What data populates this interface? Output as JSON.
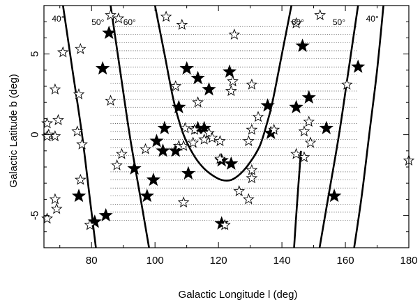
{
  "chart_data": {
    "type": "scatter",
    "title": "",
    "xlabel": "Galactic Longitude l (deg)",
    "ylabel": "Galactic Latitude b (deg)",
    "xlim": [
      65,
      180
    ],
    "ylim": [
      -7,
      8
    ],
    "xticks": [
      80,
      100,
      120,
      140,
      160,
      180
    ],
    "yticks": [
      -5,
      0,
      5
    ],
    "grid": false,
    "curve_labels": [
      {
        "text": "40°",
        "x": 69.5,
        "y": 7.0
      },
      {
        "text": "50°",
        "x": 82.0,
        "y": 6.8
      },
      {
        "text": "60°",
        "x": 92.0,
        "y": 6.8
      },
      {
        "text": "60°",
        "x": 145.0,
        "y": 6.8
      },
      {
        "text": "50°",
        "x": 158.0,
        "y": 6.8
      },
      {
        "text": "40°",
        "x": 168.5,
        "y": 7.0
      }
    ],
    "curves": [
      {
        "name": "40° left",
        "points": [
          [
            71,
            8
          ],
          [
            74,
            4
          ],
          [
            77,
            0
          ],
          [
            79.5,
            -4
          ],
          [
            82,
            -8
          ]
        ]
      },
      {
        "name": "50° left",
        "points": [
          [
            86,
            8
          ],
          [
            89,
            4
          ],
          [
            92,
            0
          ],
          [
            95.5,
            -4
          ],
          [
            99,
            -8
          ]
        ]
      },
      {
        "name": "60° left",
        "points": [
          [
            100,
            8
          ],
          [
            101,
            7
          ],
          [
            103,
            5
          ],
          [
            106,
            2
          ],
          [
            109,
            0
          ],
          [
            112,
            -1.2
          ],
          [
            115,
            -2.0
          ],
          [
            118,
            -2.5
          ],
          [
            121,
            -2.8
          ],
          [
            124,
            -2.8
          ],
          [
            127,
            -2.4
          ],
          [
            130,
            -1.7
          ],
          [
            133,
            -0.7
          ],
          [
            135,
            0.5
          ],
          [
            137,
            2
          ],
          [
            140,
            5
          ],
          [
            142,
            7
          ],
          [
            143,
            8
          ]
        ]
      },
      {
        "name": "50° right",
        "points": [
          [
            164,
            8
          ],
          [
            161,
            4
          ],
          [
            158,
            0
          ],
          [
            154.5,
            -4
          ],
          [
            151,
            -8
          ]
        ]
      },
      {
        "name": "40° right",
        "points": [
          [
            172,
            8
          ],
          [
            170,
            4
          ],
          [
            167.5,
            0
          ],
          [
            165,
            -4
          ],
          [
            162,
            -8
          ]
        ]
      },
      {
        "name": "left edge of 60° region (bottom)",
        "points": [
          [
            143.5,
            -8
          ],
          [
            144.5,
            -5
          ],
          [
            146,
            -1
          ]
        ]
      }
    ],
    "survey_rows": {
      "b_values": [
        6.7,
        6.2,
        5.7,
        5.2,
        4.7,
        4.2,
        3.7,
        3.2,
        2.7,
        2.2,
        1.7,
        1.2,
        0.7,
        0.2,
        -0.3,
        -0.8,
        -1.3,
        -1.8,
        -2.3,
        -2.8,
        -3.3,
        -3.8,
        -4.3,
        -4.8,
        -5.3
      ],
      "l_start": 86,
      "l_end": 164
    },
    "series": [
      {
        "name": "filled stars",
        "points": [
          [
            85.5,
            6.3
          ],
          [
            83.5,
            4.1
          ],
          [
            146.5,
            5.5
          ],
          [
            164,
            4.2
          ],
          [
            123.5,
            3.9
          ],
          [
            110,
            4.1
          ],
          [
            113.5,
            3.5
          ],
          [
            117,
            2.8
          ],
          [
            148.5,
            2.3
          ],
          [
            135.5,
            1.8
          ],
          [
            144.5,
            1.7
          ],
          [
            107.5,
            1.7
          ],
          [
            103,
            0.4
          ],
          [
            113.5,
            0.4
          ],
          [
            115.5,
            0.4
          ],
          [
            154,
            0.4
          ],
          [
            136.5,
            0.1
          ],
          [
            100.5,
            -0.4
          ],
          [
            102.5,
            -1.0
          ],
          [
            106.5,
            -1.0
          ],
          [
            121,
            -1.6
          ],
          [
            124,
            -1.8
          ],
          [
            93.5,
            -2.1
          ],
          [
            110.5,
            -2.4
          ],
          [
            99.5,
            -2.8
          ],
          [
            76,
            -3.8
          ],
          [
            97.5,
            -3.8
          ],
          [
            156.5,
            -3.8
          ],
          [
            84.5,
            -5.0
          ],
          [
            81,
            -5.4
          ],
          [
            121,
            -5.5
          ]
        ]
      },
      {
        "name": "open stars",
        "points": [
          [
            86,
            7.4
          ],
          [
            88.5,
            7.2
          ],
          [
            103.5,
            7.3
          ],
          [
            144.5,
            6.9
          ],
          [
            152,
            7.4
          ],
          [
            108.5,
            6.8
          ],
          [
            125,
            6.2
          ],
          [
            76.5,
            5.3
          ],
          [
            71,
            5.1
          ],
          [
            124.5,
            3.3
          ],
          [
            130.5,
            3.1
          ],
          [
            106.5,
            3.0
          ],
          [
            68.5,
            2.8
          ],
          [
            160.5,
            3.1
          ],
          [
            76,
            2.5
          ],
          [
            124,
            2.7
          ],
          [
            86,
            2.1
          ],
          [
            113.5,
            2.0
          ],
          [
            132.5,
            1.1
          ],
          [
            66,
            0.7
          ],
          [
            69.5,
            0.9
          ],
          [
            148.5,
            0.8
          ],
          [
            130.5,
            0.3
          ],
          [
            137.5,
            0.3
          ],
          [
            109.5,
            0.4
          ],
          [
            112.5,
            0.3
          ],
          [
            66.5,
            0.0
          ],
          [
            68.5,
            -0.1
          ],
          [
            66,
            -0.1
          ],
          [
            117,
            0.1
          ],
          [
            75.5,
            0.2
          ],
          [
            147,
            0.2
          ],
          [
            115.5,
            -0.3
          ],
          [
            118,
            -0.2
          ],
          [
            120.5,
            -0.4
          ],
          [
            107.5,
            -0.7
          ],
          [
            109,
            -0.7
          ],
          [
            129.5,
            -0.4
          ],
          [
            149,
            -0.5
          ],
          [
            112,
            -0.5
          ],
          [
            97,
            -0.9
          ],
          [
            77,
            -0.6
          ],
          [
            89.5,
            -1.2
          ],
          [
            144.5,
            -1.2
          ],
          [
            147,
            -1.4
          ],
          [
            120.5,
            -1.5
          ],
          [
            88,
            -1.9
          ],
          [
            130.5,
            -2.2
          ],
          [
            130.5,
            -2.7
          ],
          [
            76.5,
            -2.8
          ],
          [
            126.5,
            -3.5
          ],
          [
            68.5,
            -4.0
          ],
          [
            69,
            -4.6
          ],
          [
            109,
            -4.2
          ],
          [
            129.5,
            -4.0
          ],
          [
            66,
            -5.2
          ],
          [
            79.5,
            -5.6
          ],
          [
            122,
            -5.6
          ],
          [
            180,
            -1.6
          ]
        ]
      }
    ]
  }
}
